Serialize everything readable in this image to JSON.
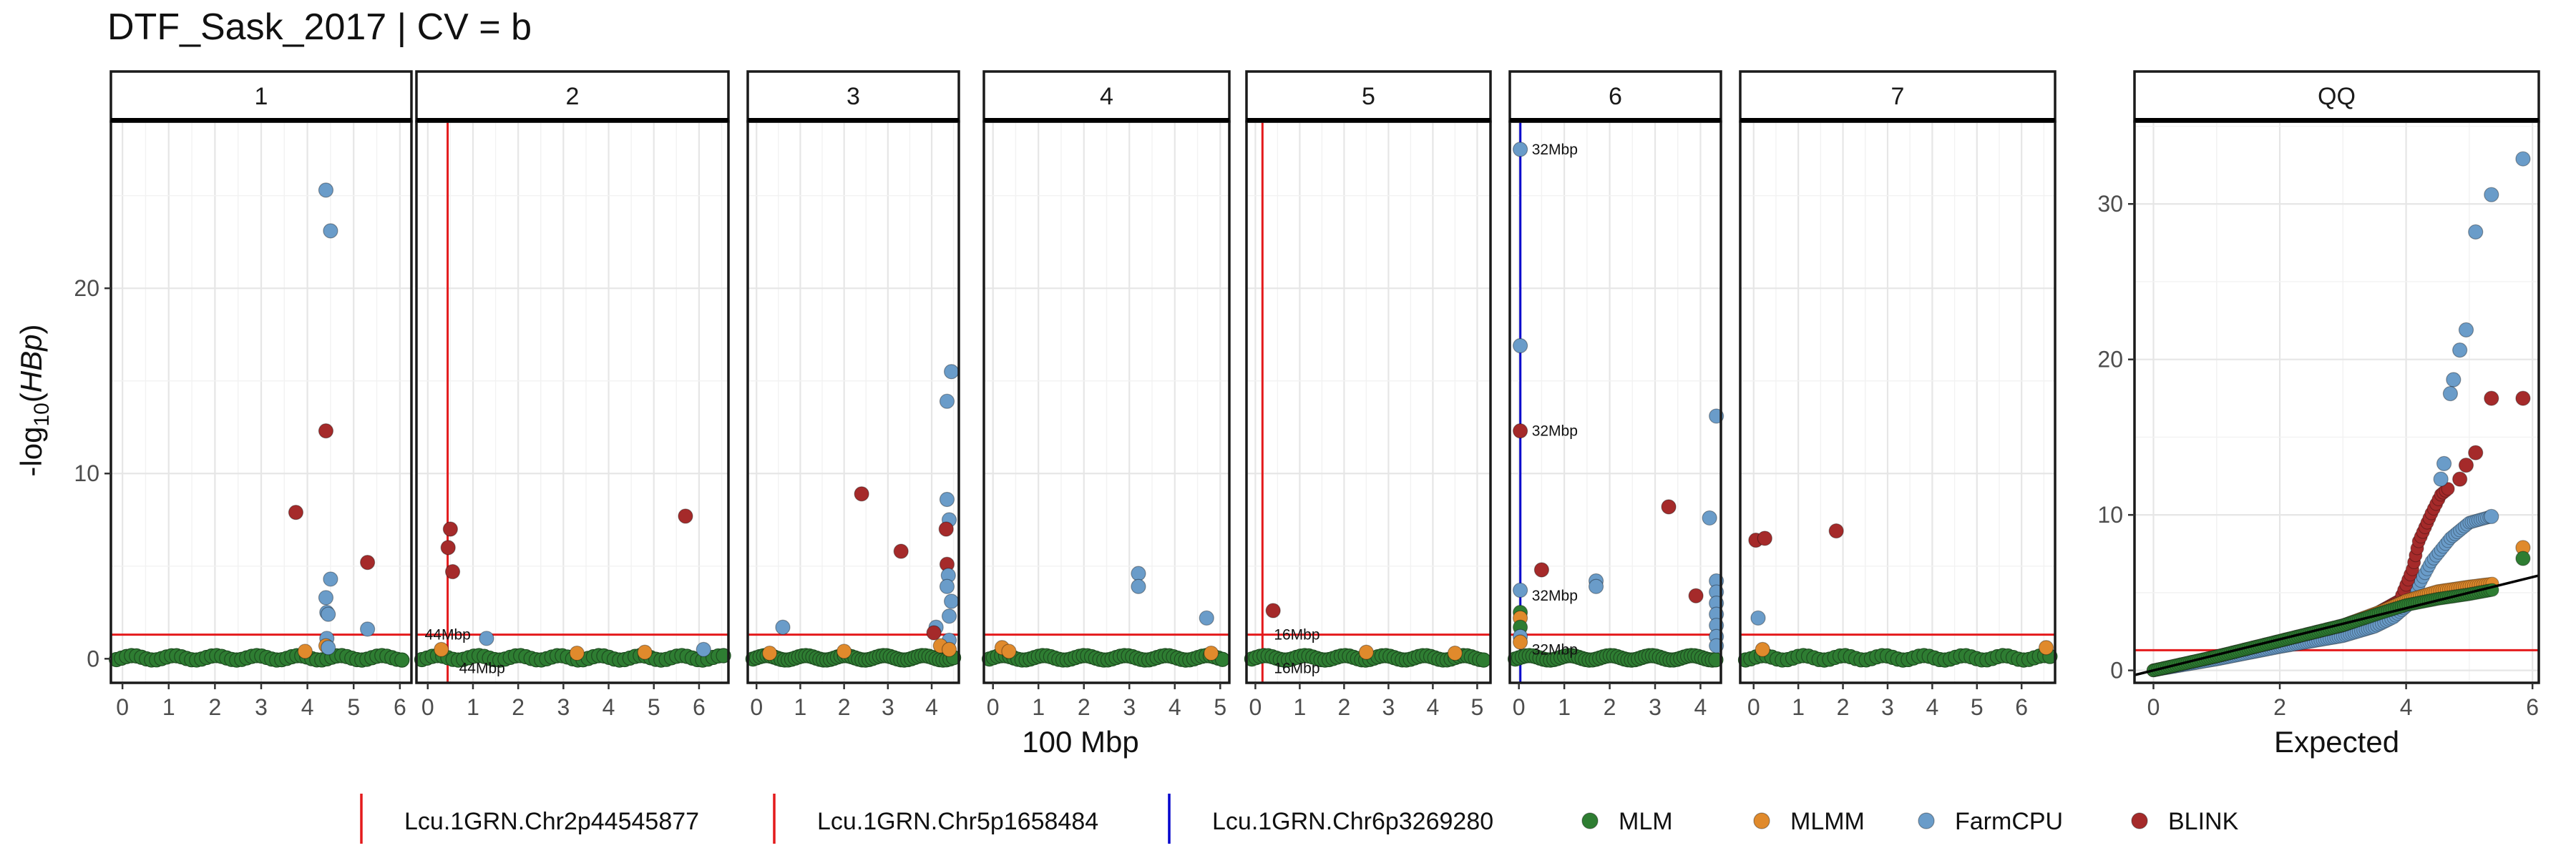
{
  "chart_data": {
    "type": "scatter",
    "title": "DTF_Sask_2017 | CV = b",
    "ylabel_prefix": "-log",
    "ylabel_sub": "10",
    "ylabel_var": "HBp",
    "manhattan": {
      "xlabel": "100 Mbp",
      "ylim": [
        -1.3,
        29.0
      ],
      "yticks": [
        0,
        10,
        20
      ],
      "threshold": 1.3,
      "threshold_color": "#e41a1c",
      "panels": [
        {
          "name": "1",
          "xlim": [
            -0.25,
            6.25
          ],
          "xticks": [
            0,
            1,
            2,
            3,
            4,
            5,
            6
          ],
          "markers": [],
          "points": [
            {
              "s": "FarmCPU",
              "x": 4.4,
              "y": 25.3
            },
            {
              "s": "FarmCPU",
              "x": 4.5,
              "y": 23.1
            },
            {
              "s": "BLINK",
              "x": 4.4,
              "y": 12.3
            },
            {
              "s": "BLINK",
              "x": 3.75,
              "y": 7.9
            },
            {
              "s": "BLINK",
              "x": 5.3,
              "y": 5.2
            },
            {
              "s": "FarmCPU",
              "x": 4.5,
              "y": 4.3
            },
            {
              "s": "FarmCPU",
              "x": 4.4,
              "y": 3.3
            },
            {
              "s": "FarmCPU",
              "x": 4.42,
              "y": 2.5
            },
            {
              "s": "FarmCPU",
              "x": 4.45,
              "y": 2.4
            },
            {
              "s": "FarmCPU",
              "x": 5.3,
              "y": 1.6
            },
            {
              "s": "FarmCPU",
              "x": 4.42,
              "y": 1.1
            },
            {
              "s": "MLMM",
              "x": 4.4,
              "y": 0.7
            },
            {
              "s": "MLMM",
              "x": 3.95,
              "y": 0.4
            },
            {
              "s": "FarmCPU",
              "x": 4.45,
              "y": 0.6
            }
          ]
        },
        {
          "name": "2",
          "xlim": [
            -0.25,
            6.65
          ],
          "xticks": [
            0,
            1,
            2,
            3,
            4,
            5,
            6
          ],
          "markers": [
            {
              "x": 0.44,
              "color": "#e41a1c",
              "label": "44Mbp",
              "label_y": 1.3,
              "label_side": "left"
            },
            {
              "x": 0.44,
              "color": "#e41a1c",
              "label": "44Mbp",
              "label_y": -0.5,
              "label_side": "right"
            }
          ],
          "points": [
            {
              "s": "BLINK",
              "x": 0.5,
              "y": 7.0
            },
            {
              "s": "BLINK",
              "x": 0.45,
              "y": 6.0
            },
            {
              "s": "BLINK",
              "x": 0.55,
              "y": 4.7
            },
            {
              "s": "BLINK",
              "x": 5.7,
              "y": 7.7
            },
            {
              "s": "FarmCPU",
              "x": 1.3,
              "y": 1.1
            },
            {
              "s": "FarmCPU",
              "x": 6.1,
              "y": 0.5
            },
            {
              "s": "MLMM",
              "x": 0.3,
              "y": 0.5
            },
            {
              "s": "MLMM",
              "x": 3.3,
              "y": 0.3
            },
            {
              "s": "MLMM",
              "x": 4.8,
              "y": 0.35
            }
          ]
        },
        {
          "name": "3",
          "xlim": [
            -0.2,
            4.62
          ],
          "xticks": [
            0,
            1,
            2,
            3,
            4
          ],
          "markers": [],
          "points": [
            {
              "s": "FarmCPU",
              "x": 4.45,
              "y": 15.5
            },
            {
              "s": "FarmCPU",
              "x": 4.35,
              "y": 13.9
            },
            {
              "s": "BLINK",
              "x": 2.4,
              "y": 8.9
            },
            {
              "s": "FarmCPU",
              "x": 4.35,
              "y": 8.6
            },
            {
              "s": "FarmCPU",
              "x": 4.4,
              "y": 7.5
            },
            {
              "s": "BLINK",
              "x": 4.33,
              "y": 7.0
            },
            {
              "s": "BLINK",
              "x": 3.3,
              "y": 5.8
            },
            {
              "s": "BLINK",
              "x": 4.35,
              "y": 5.1
            },
            {
              "s": "FarmCPU",
              "x": 4.38,
              "y": 4.5
            },
            {
              "s": "FarmCPU",
              "x": 4.35,
              "y": 3.9
            },
            {
              "s": "FarmCPU",
              "x": 4.45,
              "y": 3.1
            },
            {
              "s": "FarmCPU",
              "x": 4.4,
              "y": 2.3
            },
            {
              "s": "FarmCPU",
              "x": 0.6,
              "y": 1.7
            },
            {
              "s": "FarmCPU",
              "x": 4.1,
              "y": 1.7
            },
            {
              "s": "BLINK",
              "x": 4.05,
              "y": 1.4
            },
            {
              "s": "FarmCPU",
              "x": 4.4,
              "y": 1.0
            },
            {
              "s": "MLMM",
              "x": 4.2,
              "y": 0.7
            },
            {
              "s": "MLMM",
              "x": 2.0,
              "y": 0.4
            },
            {
              "s": "MLMM",
              "x": 0.3,
              "y": 0.3
            },
            {
              "s": "MLMM",
              "x": 4.4,
              "y": 0.5
            }
          ]
        },
        {
          "name": "4",
          "xlim": [
            -0.2,
            5.2
          ],
          "xticks": [
            0,
            1,
            2,
            3,
            4,
            5
          ],
          "markers": [],
          "points": [
            {
              "s": "FarmCPU",
              "x": 3.2,
              "y": 4.6
            },
            {
              "s": "FarmCPU",
              "x": 3.2,
              "y": 3.9
            },
            {
              "s": "FarmCPU",
              "x": 4.7,
              "y": 2.2
            },
            {
              "s": "MLMM",
              "x": 0.2,
              "y": 0.6
            },
            {
              "s": "MLMM",
              "x": 0.35,
              "y": 0.4
            },
            {
              "s": "MLMM",
              "x": 4.8,
              "y": 0.3
            }
          ]
        },
        {
          "name": "5",
          "xlim": [
            -0.2,
            5.3
          ],
          "xticks": [
            0,
            1,
            2,
            3,
            4,
            5
          ],
          "markers": [
            {
              "x": 0.16,
              "color": "#e41a1c",
              "label": "16Mbp",
              "label_y": 1.3,
              "label_side": "right"
            },
            {
              "x": 0.16,
              "color": "#e41a1c",
              "label": "16Mbp",
              "label_y": -0.5,
              "label_side": "right"
            }
          ],
          "points": [
            {
              "s": "BLINK",
              "x": 0.4,
              "y": 2.6
            },
            {
              "s": "MLMM",
              "x": 2.5,
              "y": 0.35
            },
            {
              "s": "MLMM",
              "x": 4.5,
              "y": 0.3
            }
          ]
        },
        {
          "name": "6",
          "xlim": [
            -0.2,
            4.45
          ],
          "xticks": [
            0,
            1,
            2,
            3,
            4
          ],
          "markers": [
            {
              "x": 0.032,
              "color": "#0000cc",
              "label": "32Mbp",
              "label_y": 27.5,
              "label_side": "right"
            },
            {
              "x": 0.032,
              "color": "#0000cc",
              "label": "32Mbp",
              "label_y": 12.3,
              "label_side": "right"
            },
            {
              "x": 0.032,
              "color": "#0000cc",
              "label": "32Mbp",
              "label_y": 3.4,
              "label_side": "right"
            },
            {
              "x": 0.032,
              "color": "#0000cc",
              "label": "32Mbp",
              "label_y": 0.5,
              "label_side": "right"
            }
          ],
          "points": [
            {
              "s": "FarmCPU",
              "x": 0.03,
              "y": 27.5
            },
            {
              "s": "FarmCPU",
              "x": 0.03,
              "y": 16.9
            },
            {
              "s": "BLINK",
              "x": 0.03,
              "y": 12.3
            },
            {
              "s": "FarmCPU",
              "x": 4.35,
              "y": 13.1
            },
            {
              "s": "BLINK",
              "x": 3.3,
              "y": 8.2
            },
            {
              "s": "FarmCPU",
              "x": 4.2,
              "y": 7.6
            },
            {
              "s": "BLINK",
              "x": 0.5,
              "y": 4.8
            },
            {
              "s": "FarmCPU",
              "x": 1.7,
              "y": 4.2
            },
            {
              "s": "FarmCPU",
              "x": 1.7,
              "y": 3.9
            },
            {
              "s": "BLINK",
              "x": 3.9,
              "y": 3.4
            },
            {
              "s": "FarmCPU",
              "x": 4.35,
              "y": 4.2
            },
            {
              "s": "FarmCPU",
              "x": 4.35,
              "y": 3.6
            },
            {
              "s": "FarmCPU",
              "x": 4.35,
              "y": 3.0
            },
            {
              "s": "FarmCPU",
              "x": 4.35,
              "y": 2.4
            },
            {
              "s": "FarmCPU",
              "x": 4.35,
              "y": 1.8
            },
            {
              "s": "FarmCPU",
              "x": 4.35,
              "y": 1.2
            },
            {
              "s": "FarmCPU",
              "x": 4.35,
              "y": 0.7
            },
            {
              "s": "FarmCPU",
              "x": 0.03,
              "y": 3.7
            },
            {
              "s": "MLM",
              "x": 0.03,
              "y": 2.5
            },
            {
              "s": "MLMM",
              "x": 0.03,
              "y": 2.2
            },
            {
              "s": "MLM",
              "x": 0.03,
              "y": 1.7
            },
            {
              "s": "FarmCPU",
              "x": 0.03,
              "y": 1.2
            },
            {
              "s": "MLMM",
              "x": 0.03,
              "y": 0.9
            }
          ]
        },
        {
          "name": "7",
          "xlim": [
            -0.3,
            6.75
          ],
          "xticks": [
            0,
            1,
            2,
            3,
            4,
            5,
            6
          ],
          "markers": [],
          "points": [
            {
              "s": "BLINK",
              "x": 0.05,
              "y": 6.4
            },
            {
              "s": "BLINK",
              "x": 0.25,
              "y": 6.5
            },
            {
              "s": "BLINK",
              "x": 1.85,
              "y": 6.9
            },
            {
              "s": "FarmCPU",
              "x": 0.1,
              "y": 2.2
            },
            {
              "s": "MLMM",
              "x": 0.2,
              "y": 0.5
            },
            {
              "s": "MLMM",
              "x": 6.55,
              "y": 0.6
            }
          ]
        }
      ]
    },
    "qq": {
      "name": "QQ",
      "xlabel": "Expected",
      "xlim": [
        -0.3,
        6.1
      ],
      "ylim": [
        -0.8,
        35.3
      ],
      "xticks": [
        0,
        2,
        4,
        6
      ],
      "yticks": [
        0,
        10,
        20,
        30
      ],
      "threshold": 1.3,
      "outliers": [
        {
          "s": "FarmCPU",
          "x": 5.85,
          "y": 32.9
        },
        {
          "s": "FarmCPU",
          "x": 5.35,
          "y": 30.6
        },
        {
          "s": "FarmCPU",
          "x": 5.1,
          "y": 28.2
        },
        {
          "s": "FarmCPU",
          "x": 4.95,
          "y": 21.9
        },
        {
          "s": "FarmCPU",
          "x": 4.85,
          "y": 20.6
        },
        {
          "s": "FarmCPU",
          "x": 4.75,
          "y": 18.7
        },
        {
          "s": "FarmCPU",
          "x": 4.7,
          "y": 17.8
        },
        {
          "s": "BLINK",
          "x": 5.85,
          "y": 17.5
        },
        {
          "s": "BLINK",
          "x": 5.35,
          "y": 17.5
        },
        {
          "s": "BLINK",
          "x": 5.1,
          "y": 14.0
        },
        {
          "s": "FarmCPU",
          "x": 4.6,
          "y": 13.3
        },
        {
          "s": "BLINK",
          "x": 4.95,
          "y": 13.2
        },
        {
          "s": "BLINK",
          "x": 4.85,
          "y": 12.3
        },
        {
          "s": "FarmCPU",
          "x": 4.55,
          "y": 12.3
        },
        {
          "s": "FarmCPU",
          "x": 5.35,
          "y": 9.9
        },
        {
          "s": "MLMM",
          "x": 5.85,
          "y": 7.9
        },
        {
          "s": "MLM",
          "x": 5.85,
          "y": 7.2
        }
      ],
      "series_curves": [
        {
          "s": "MLM",
          "pts": [
            [
              0,
              0
            ],
            [
              1,
              0.9
            ],
            [
              2,
              1.9
            ],
            [
              3,
              2.9
            ],
            [
              3.6,
              3.7
            ],
            [
              4,
              4.2
            ],
            [
              4.5,
              4.6
            ],
            [
              5,
              4.9
            ],
            [
              5.4,
              5.2
            ]
          ]
        },
        {
          "s": "MLMM",
          "pts": [
            [
              0,
              0
            ],
            [
              1,
              0.9
            ],
            [
              2,
              1.9
            ],
            [
              3,
              2.9
            ],
            [
              3.6,
              3.8
            ],
            [
              4,
              4.5
            ],
            [
              4.5,
              5.1
            ],
            [
              5,
              5.4
            ],
            [
              5.4,
              5.6
            ]
          ]
        },
        {
          "s": "FarmCPU",
          "pts": [
            [
              0,
              0
            ],
            [
              1,
              0.7
            ],
            [
              2,
              1.5
            ],
            [
              3,
              2.2
            ],
            [
              3.5,
              2.8
            ],
            [
              3.8,
              3.4
            ],
            [
              4,
              4.1
            ],
            [
              4.2,
              5.5
            ],
            [
              4.4,
              7.0
            ],
            [
              4.7,
              8.5
            ],
            [
              5,
              9.5
            ],
            [
              5.35,
              9.9
            ]
          ]
        },
        {
          "s": "BLINK",
          "pts": [
            [
              0,
              0
            ],
            [
              1,
              0.9
            ],
            [
              2,
              1.9
            ],
            [
              3,
              2.9
            ],
            [
              3.5,
              3.6
            ],
            [
              3.9,
              4.5
            ],
            [
              4.1,
              6.5
            ],
            [
              4.2,
              8.3
            ],
            [
              4.4,
              10.1
            ],
            [
              4.55,
              11.3
            ],
            [
              4.7,
              11.8
            ]
          ]
        }
      ],
      "reference_line": {
        "slope": 1,
        "intercept": 0,
        "color": "#000000"
      }
    },
    "series": [
      {
        "name": "MLM",
        "color": "#2e7d32"
      },
      {
        "name": "MLMM",
        "color": "#e08a2c"
      },
      {
        "name": "FarmCPU",
        "color": "#6a9cc9"
      },
      {
        "name": "BLINK",
        "color": "#a52a2a"
      }
    ],
    "legend": {
      "markers": [
        {
          "name": "Lcu.1GRN.Chr2p44545877",
          "color": "#e41a1c"
        },
        {
          "name": "Lcu.1GRN.Chr5p1658484",
          "color": "#e41a1c"
        },
        {
          "name": "Lcu.1GRN.Chr6p3269280",
          "color": "#0000cc"
        }
      ],
      "position": "bottom"
    },
    "grid": true
  }
}
